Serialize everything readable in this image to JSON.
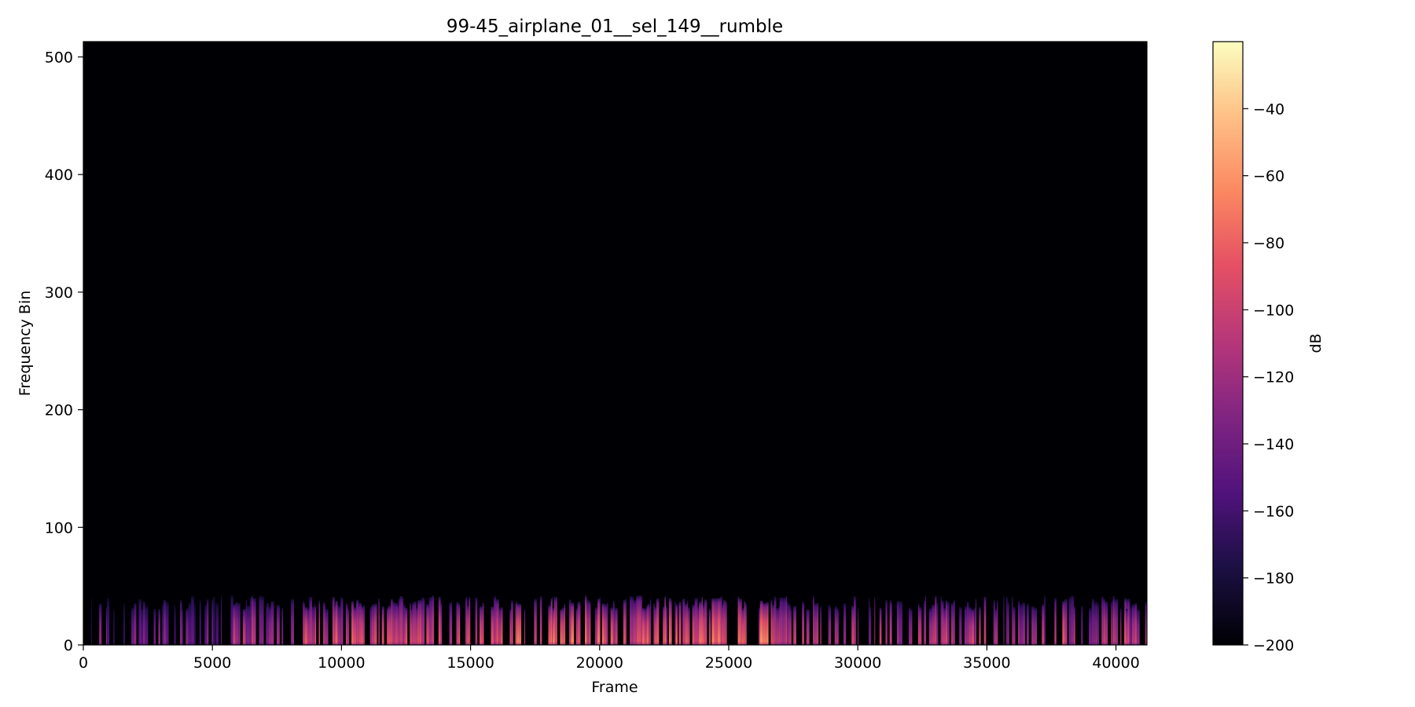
{
  "chart_data": {
    "type": "heatmap",
    "title": "99-45_airplane_01__sel_149__rumble",
    "xlabel": "Frame",
    "ylabel": "Frequency Bin",
    "xlim": [
      0,
      41200
    ],
    "ylim": [
      0,
      513
    ],
    "x_ticks": [
      0,
      5000,
      10000,
      15000,
      20000,
      25000,
      30000,
      35000,
      40000
    ],
    "y_ticks": [
      0,
      100,
      200,
      300,
      400,
      500
    ],
    "grid": false,
    "colormap": "magma",
    "colorbar": {
      "label": "dB",
      "range": [
        -200,
        -20
      ],
      "ticks": [
        -200,
        -180,
        -160,
        -140,
        -120,
        -100,
        -80,
        -60,
        -40
      ]
    },
    "content_band": {
      "frequency_range": [
        0,
        42
      ],
      "note_free": true
    },
    "activity_segments": [
      {
        "frames": [
          300,
          5800
        ],
        "peak_db": -120
      },
      {
        "frames": [
          5800,
          8100
        ],
        "peak_db": -95
      },
      {
        "frames": [
          8500,
          13500
        ],
        "peak_db": -75
      },
      {
        "frames": [
          13500,
          16000
        ],
        "peak_db": -80
      },
      {
        "frames": [
          16000,
          20000
        ],
        "peak_db": -65
      },
      {
        "frames": [
          20000,
          24000
        ],
        "peak_db": -70
      },
      {
        "frames": [
          24000,
          26800
        ],
        "peak_db": -55
      },
      {
        "frames": [
          26800,
          30000
        ],
        "peak_db": -80
      },
      {
        "frames": [
          30000,
          35000
        ],
        "peak_db": -90
      },
      {
        "frames": [
          35000,
          37500
        ],
        "peak_db": -95
      },
      {
        "frames": [
          37500,
          38000
        ],
        "peak_db": -60
      },
      {
        "frames": [
          38000,
          41200
        ],
        "peak_db": -95
      },
      {
        "frames": [
          40200,
          40500
        ],
        "peak_db": -65
      }
    ]
  },
  "colors": {
    "background": "#000004",
    "plot_frame": "#000000"
  }
}
